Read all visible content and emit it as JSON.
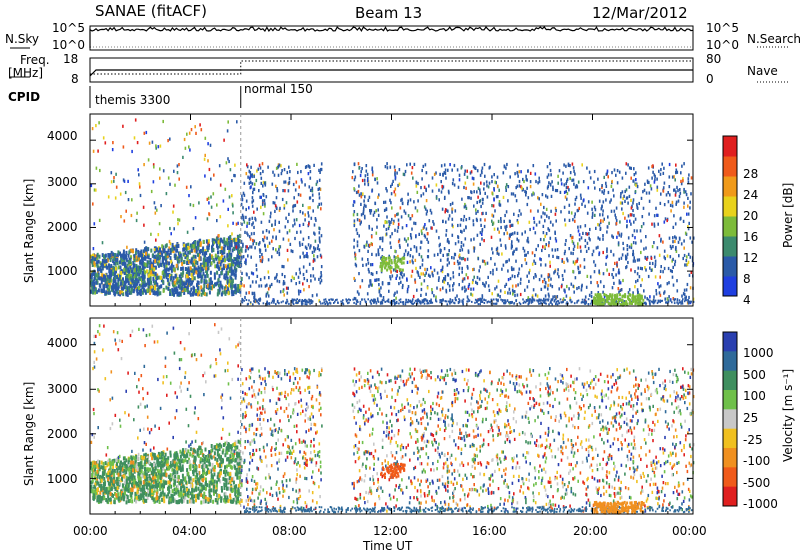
{
  "header": {
    "station": "SANAE (fitACF)",
    "beam": "Beam 13",
    "date": "12/Mar/2012"
  },
  "noise_panel": {
    "left_label": "N.Sky",
    "right_label": "N.Search",
    "ticks_left": [
      "10^5",
      "10^0"
    ],
    "ticks_right": [
      "10^5",
      "10^0"
    ]
  },
  "freq_panel": {
    "left_label_1": "Freq.",
    "left_label_2": "[MHz]",
    "right_label": "Nave",
    "ticks_left": [
      "18",
      "8"
    ],
    "ticks_right": [
      "80",
      "0"
    ]
  },
  "cpid": {
    "label": "CPID",
    "segments": [
      {
        "name": "themis 3300",
        "start_hour": 0,
        "end_hour": 6
      },
      {
        "name": "normal 150",
        "start_hour": 6,
        "end_hour": 24
      }
    ]
  },
  "chart_data": [
    {
      "type": "heatmap",
      "title": "Power",
      "xlabel": "Time UT",
      "ylabel": "Slant Range [km]",
      "xlim": [
        0,
        24
      ],
      "ylim": [
        200,
        4600
      ],
      "x_ticks": [
        "00:00",
        "04:00",
        "08:00",
        "12:00",
        "16:00",
        "20:00",
        "00:00"
      ],
      "y_ticks": [
        "1000",
        "2000",
        "3000",
        "4000"
      ],
      "colorbar_label": "Power [dB]",
      "colorbar_ticks": [
        "4",
        "8",
        "12",
        "16",
        "20",
        "24",
        "28"
      ],
      "colorbar_colors": [
        "#1f3fe0",
        "#2a5aa8",
        "#3c8a6e",
        "#7dbb3a",
        "#e8d21c",
        "#f09a1a",
        "#ef5a1a",
        "#e01f1f"
      ],
      "vmin": 0,
      "vmax": 32
    },
    {
      "type": "heatmap",
      "title": "Velocity",
      "xlabel": "Time UT",
      "ylabel": "Slant Range [km]",
      "xlim": [
        0,
        24
      ],
      "ylim": [
        200,
        4600
      ],
      "x_ticks": [
        "00:00",
        "04:00",
        "08:00",
        "12:00",
        "16:00",
        "20:00",
        "00:00"
      ],
      "y_ticks": [
        "1000",
        "2000",
        "3000",
        "4000"
      ],
      "colorbar_label": "Velocity [m s⁻¹]",
      "colorbar_ticks": [
        "1000",
        "500",
        "100",
        "25",
        "-25",
        "-100",
        "-500",
        "-1000"
      ],
      "colorbar_colors": [
        "#2a3fb0",
        "#2f6a9a",
        "#3f8f5f",
        "#6fc04a",
        "#c8c8c8",
        "#f0c020",
        "#f09020",
        "#f05a1a",
        "#e01f1f"
      ],
      "vmin": -1200,
      "vmax": 1200
    }
  ],
  "xaxis_label": "Time UT"
}
